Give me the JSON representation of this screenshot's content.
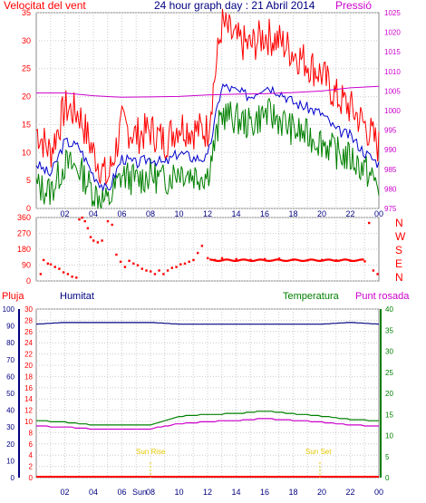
{
  "header": {
    "left_title": "Velocitat del vent",
    "center_title": "24 hour graph day : 21 Abril 2014",
    "right_title": "Pressió"
  },
  "legend": {
    "pluja": "Pluja",
    "humitat": "Humitat",
    "temperatura": "Temperatura",
    "punt_rosada": "Punt rosada"
  },
  "colors": {
    "wind_avg": "#0000cc",
    "gust": "#ff0000",
    "wind_low": "#008000",
    "pressure": "#cc00cc",
    "direction": "#ff0000",
    "humidity": "#000080",
    "temperature": "#008000",
    "dew_point": "#cc00cc",
    "rain": "#ff0000",
    "sun": "#e6c800"
  },
  "chart_data": [
    {
      "type": "line",
      "title": "Velocitat del vent",
      "right_axis_title": "Pressió",
      "x_ticks": [
        "02",
        "04",
        "06",
        "08",
        "10",
        "12",
        "14",
        "16",
        "18",
        "20",
        "22",
        "00"
      ],
      "ylim": [
        0,
        35
      ],
      "y_ticks": [
        0,
        5,
        10,
        15,
        20,
        25,
        30,
        35
      ],
      "y2lim": [
        975,
        1025
      ],
      "y2_ticks": [
        975,
        980,
        985,
        990,
        995,
        1000,
        1005,
        1010,
        1015,
        1020,
        1025
      ],
      "grid": true,
      "series": [
        {
          "name": "gust",
          "x": [
            0,
            1,
            2,
            3,
            4,
            5,
            6,
            7,
            8,
            9,
            10,
            11,
            12,
            13,
            14,
            15,
            16,
            17,
            18,
            19,
            20,
            21,
            22,
            23,
            24
          ],
          "values": [
            14,
            10,
            18,
            17,
            10,
            5,
            15,
            13,
            14,
            12,
            15,
            14,
            14,
            33,
            30,
            29,
            31,
            30,
            28,
            26,
            24,
            20,
            18,
            15,
            11
          ]
        },
        {
          "name": "wind_avg",
          "x": [
            0,
            1,
            2,
            3,
            4,
            5,
            6,
            7,
            8,
            9,
            10,
            11,
            12,
            13,
            14,
            15,
            16,
            17,
            18,
            19,
            20,
            21,
            22,
            23,
            24
          ],
          "values": [
            8,
            6,
            12,
            11,
            6,
            3,
            9,
            8,
            9,
            8,
            10,
            9,
            9,
            22,
            21,
            20,
            22,
            21,
            19,
            18,
            17,
            14,
            13,
            10,
            8
          ]
        },
        {
          "name": "wind_low",
          "x": [
            0,
            1,
            2,
            3,
            4,
            5,
            6,
            7,
            8,
            9,
            10,
            11,
            12,
            13,
            14,
            15,
            16,
            17,
            18,
            19,
            20,
            21,
            22,
            23,
            24
          ],
          "values": [
            4,
            3,
            8,
            7,
            3,
            1,
            6,
            5,
            6,
            5,
            7,
            6,
            6,
            17,
            16,
            15,
            17,
            16,
            14,
            13,
            12,
            10,
            9,
            7,
            4
          ]
        },
        {
          "name": "pressure",
          "x": [
            0,
            2,
            4,
            6,
            8,
            10,
            12,
            14,
            16,
            18,
            20,
            22,
            24
          ],
          "values": [
            1004.5,
            1004.5,
            1003.8,
            1003.4,
            1003.5,
            1003.6,
            1004,
            1004.2,
            1004.3,
            1004.6,
            1005,
            1005.8,
            1006.2
          ]
        }
      ]
    },
    {
      "type": "scatter",
      "x_ticks": [
        "02",
        "04",
        "06",
        "08",
        "10",
        "12",
        "14",
        "16",
        "18",
        "20",
        "22",
        "00"
      ],
      "ylim": [
        0,
        360
      ],
      "y_ticks": [
        0,
        90,
        180,
        270,
        360
      ],
      "direction_labels": [
        "N",
        "W",
        "S",
        "E",
        "N"
      ],
      "grid": true,
      "series": [
        {
          "name": "direction",
          "x": [
            0.3,
            0.5,
            0.8,
            1.0,
            1.3,
            1.6,
            1.9,
            2.2,
            2.5,
            2.8,
            3.0,
            3.2,
            3.4,
            3.6,
            3.8,
            4.0,
            4.3,
            4.6,
            5.0,
            5.3,
            5.6,
            5.9,
            6.2,
            6.5,
            6.8,
            7.1,
            7.4,
            7.7,
            8.0,
            8.3,
            8.6,
            8.9,
            9.2,
            9.5,
            9.8,
            10.1,
            10.4,
            10.7,
            11.0,
            11.3,
            11.6,
            12.0,
            12.5,
            13,
            14,
            15,
            16,
            17,
            18,
            19,
            20,
            21,
            22,
            23,
            23.3,
            23.6,
            23.9
          ],
          "values": [
            40,
            120,
            100,
            95,
            80,
            70,
            50,
            40,
            25,
            20,
            350,
            360,
            340,
            300,
            250,
            230,
            220,
            230,
            340,
            320,
            150,
            110,
            80,
            115,
            100,
            90,
            70,
            60,
            55,
            40,
            60,
            40,
            60,
            75,
            80,
            95,
            100,
            110,
            120,
            160,
            200,
            130,
            120,
            130,
            125,
            120,
            125,
            128,
            122,
            118,
            120,
            118,
            115,
            112,
            330,
            60,
            40
          ]
        }
      ]
    },
    {
      "type": "line",
      "legend": [
        "Pluja",
        "Humitat",
        "Temperatura",
        "Punt rosada"
      ],
      "x_ticks": [
        "02",
        "04",
        "06",
        "08",
        "10",
        "12",
        "14",
        "16",
        "18",
        "20",
        "22",
        "00"
      ],
      "x_tick_extra": "Sun",
      "annotations": [
        "Sun Rise",
        "Sun Set"
      ],
      "ylim_rain": [
        0,
        30
      ],
      "y_ticks_rain": [
        0,
        2,
        4,
        6,
        8,
        10,
        12,
        14,
        16,
        18,
        20,
        22,
        24,
        26,
        28,
        30
      ],
      "ylim_humidity": [
        0,
        100
      ],
      "y_ticks_humidity": [
        0,
        10,
        20,
        30,
        40,
        50,
        60,
        70,
        80,
        90,
        100
      ],
      "ylim_temp": [
        0,
        40
      ],
      "y_ticks_temp": [
        0,
        5,
        10,
        15,
        20,
        25,
        30,
        35,
        40
      ],
      "grid": true,
      "series": [
        {
          "name": "rain",
          "x": [
            0,
            24
          ],
          "values": [
            0,
            0
          ]
        },
        {
          "name": "humidity",
          "x": [
            0,
            2,
            4,
            6,
            8,
            10,
            12,
            14,
            16,
            18,
            20,
            22,
            24
          ],
          "values": [
            91,
            92,
            92,
            92,
            92,
            91,
            91,
            91,
            91,
            91,
            91,
            92,
            91
          ]
        },
        {
          "name": "temperature",
          "x": [
            0,
            2,
            4,
            6,
            8,
            10,
            12,
            14,
            16,
            18,
            20,
            22,
            24
          ],
          "values": [
            13.5,
            13.2,
            12.5,
            12.5,
            12.6,
            14.5,
            15,
            15.2,
            15.8,
            15.2,
            14.6,
            13.8,
            13.5
          ]
        },
        {
          "name": "dew_point",
          "x": [
            0,
            2,
            4,
            6,
            8,
            10,
            12,
            14,
            16,
            18,
            20,
            22,
            24
          ],
          "values": [
            12.2,
            12,
            11.5,
            11.5,
            11.6,
            12.8,
            13.3,
            13.5,
            14,
            13.6,
            13.2,
            12.5,
            12.2
          ]
        }
      ]
    }
  ]
}
